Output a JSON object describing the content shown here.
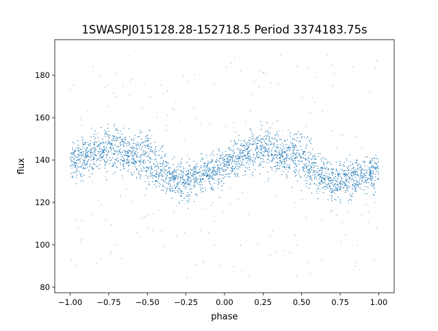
{
  "chart_data": {
    "type": "scatter",
    "title": "1SWASPJ015128.28-152718.5 Period 3374183.75s",
    "xlabel": "phase",
    "ylabel": "flux",
    "xlim": [
      -1.1,
      1.1
    ],
    "ylim": [
      77.4,
      196.8
    ],
    "xticks": [
      -1.0,
      -0.75,
      -0.5,
      -0.25,
      0.0,
      0.25,
      0.5,
      0.75,
      1.0
    ],
    "xtick_labels": [
      "−1.00",
      "−0.75",
      "−0.50",
      "−0.25",
      "0.00",
      "0.25",
      "0.50",
      "0.75",
      "1.00"
    ],
    "yticks": [
      80,
      100,
      120,
      140,
      160,
      180
    ],
    "ytick_labels": [
      "80",
      "100",
      "120",
      "140",
      "160",
      "180"
    ],
    "grid": false,
    "color": "#1f77b4",
    "binned_series": {
      "phase": [
        -1.0,
        -0.95,
        -0.9,
        -0.85,
        -0.8,
        -0.75,
        -0.7,
        -0.65,
        -0.6,
        -0.55,
        -0.5,
        -0.45,
        -0.4,
        -0.35,
        -0.3,
        -0.25,
        -0.2,
        -0.15,
        -0.1,
        -0.05,
        0.0,
        0.05,
        0.1,
        0.15,
        0.2,
        0.25,
        0.3,
        0.35,
        0.4,
        0.45,
        0.5,
        0.55,
        0.6,
        0.65,
        0.7,
        0.75,
        0.8,
        0.85,
        0.9,
        0.95,
        1.0
      ],
      "mean_flux": [
        138,
        140,
        142,
        143,
        145,
        146,
        145,
        143,
        142,
        142,
        141,
        138,
        135,
        132,
        130,
        130,
        131,
        133,
        135,
        136,
        137,
        139,
        141,
        143,
        145,
        146,
        145,
        143,
        142,
        142,
        141,
        138,
        135,
        132,
        130,
        130,
        131,
        132,
        133,
        134,
        136
      ],
      "spread": [
        9,
        9,
        9,
        10,
        11,
        11,
        10,
        10,
        11,
        12,
        12,
        11,
        10,
        9,
        9,
        9,
        9,
        8,
        8,
        9,
        9,
        9,
        9,
        10,
        11,
        11,
        10,
        10,
        11,
        12,
        12,
        11,
        10,
        9,
        9,
        9,
        9,
        8,
        8,
        9,
        9
      ]
    },
    "flux_range": [
      84,
      190
    ]
  }
}
